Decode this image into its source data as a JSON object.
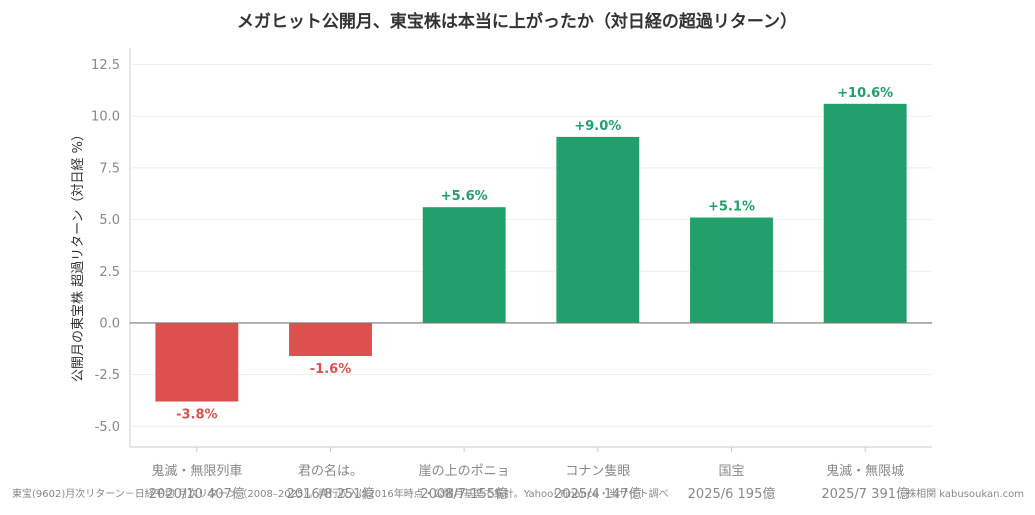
{
  "chart_data": {
    "type": "bar",
    "title": "メガヒット公開月、東宝株は本当に上がったか（対日経の超過リターン）",
    "ylabel": "公開月の東宝株 超過リターン（対日経 %）",
    "ylim": [
      -6.0,
      13.3
    ],
    "yticks": [
      "12.5",
      "10.0",
      "7.5",
      "5.0",
      "2.5",
      "0.0",
      "-2.5",
      "-5.0"
    ],
    "ytick_values": [
      12.5,
      10.0,
      7.5,
      5.0,
      2.5,
      0.0,
      -2.5,
      -5.0
    ],
    "grid": true,
    "categories": [
      {
        "name": "鬼滅・無限列車",
        "sub": "2020/10 407億"
      },
      {
        "name": "君の名は。",
        "sub": "2016/8 251億"
      },
      {
        "name": "崖の上のポニョ",
        "sub": "2008/7 155億"
      },
      {
        "name": "コナン隻眼",
        "sub": "2025/4 147億"
      },
      {
        "name": "国宝",
        "sub": "2025/6 195億"
      },
      {
        "name": "鬼滅・無限城",
        "sub": "2025/7 391億"
      }
    ],
    "values": [
      -3.8,
      -1.6,
      5.6,
      9.0,
      5.1,
      10.6
    ],
    "value_labels": [
      "-3.8%",
      "-1.6%",
      "+5.6%",
      "+9.0%",
      "+5.1%",
      "+10.6%"
    ],
    "colors": {
      "positive": "#21a06b",
      "negative": "#dc514e",
      "grid": "#eeeeee",
      "zero": "#777777",
      "axis": "#cccccc"
    }
  },
  "footer": {
    "left": "東宝(9602)月次リターン－日経平均 月次リターン（2008–2025）。興行収入は2016年時点・公開月基準で集計。Yahoo! Finance・当サイト調べ",
    "right": "株相関 kabusoukan.com"
  }
}
